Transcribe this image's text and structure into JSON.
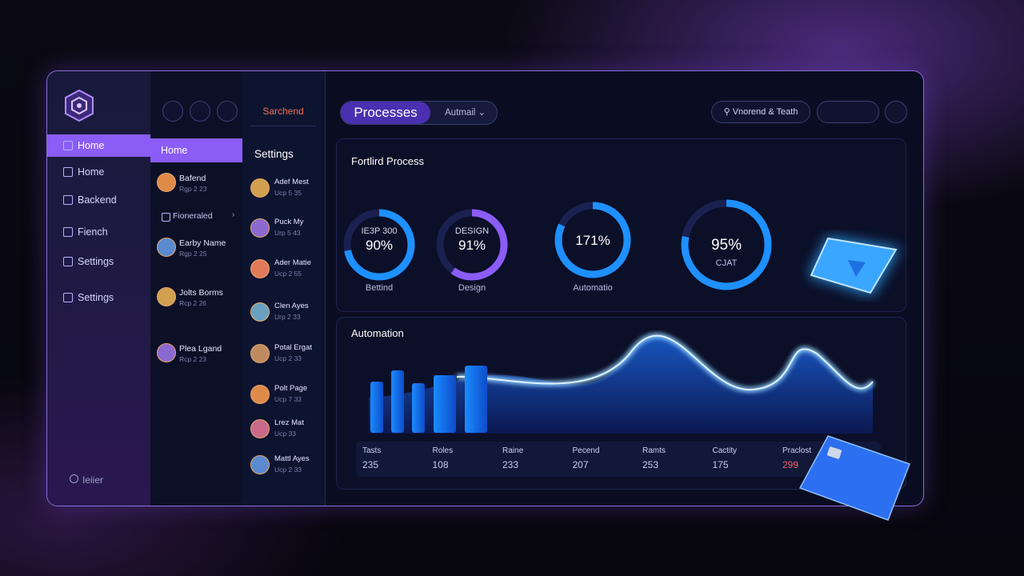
{
  "sidebar": {
    "nav": [
      "Home",
      "Home",
      "Backend",
      "Fiench",
      "Settings",
      "Settings"
    ],
    "footer": "Ieiier"
  },
  "people_panel": {
    "header": "Home",
    "items": [
      {
        "name": "Bafend",
        "sub": "Rgp 2 23"
      },
      {
        "name": "Fioneraled"
      },
      {
        "name": "Earby Name",
        "sub": "Rgp 2 25"
      },
      {
        "name": "Jolts Borms",
        "sub": "Rcp 2 26"
      },
      {
        "name": "Plea Lgand",
        "sub": "Rcp 2 23"
      }
    ]
  },
  "settings_panel": {
    "tab": "Sarchend",
    "header": "Settings",
    "items": [
      {
        "name": "Adef Mest",
        "sub": "Ucp 5 35"
      },
      {
        "name": "Puck My",
        "sub": "Urp 5 43"
      },
      {
        "name": "Ader Matie",
        "sub": "Ucp 2 55"
      },
      {
        "name": "Clen Ayes",
        "sub": "Urp 2 33"
      },
      {
        "name": "Potal Ergat",
        "sub": "Ucp 2 33"
      },
      {
        "name": "Polt Page",
        "sub": "Ucp 7 33"
      },
      {
        "name": "Lrez Mat",
        "sub": "Ucp 33"
      },
      {
        "name": "Mattl Ayes",
        "sub": "Ucp 2 33"
      }
    ]
  },
  "topbar": {
    "title": "Processes",
    "dropdown": "Autmail",
    "search": "Vnorend & Teath"
  },
  "process_card": {
    "title": "Fortlird Process",
    "gauges": [
      {
        "top": "IE3P 300",
        "value": "90%",
        "label": "Bettind"
      },
      {
        "top": "DESIGN",
        "value": "91%",
        "label": "Design"
      },
      {
        "value": "171%",
        "label": "Automatio"
      },
      {
        "value": "95%",
        "bottom": "CJAT"
      }
    ]
  },
  "automation_card": {
    "title": "Automation",
    "stats": [
      {
        "label": "Tasts",
        "value": 235
      },
      {
        "label": "Roles",
        "value": 108
      },
      {
        "label": "Raine",
        "value": 233
      },
      {
        "label": "Pecend",
        "value": 207
      },
      {
        "label": "Ramts",
        "value": 253
      },
      {
        "label": "Cactity",
        "value": 175
      },
      {
        "label": "Praclost",
        "value": 299
      }
    ]
  }
}
